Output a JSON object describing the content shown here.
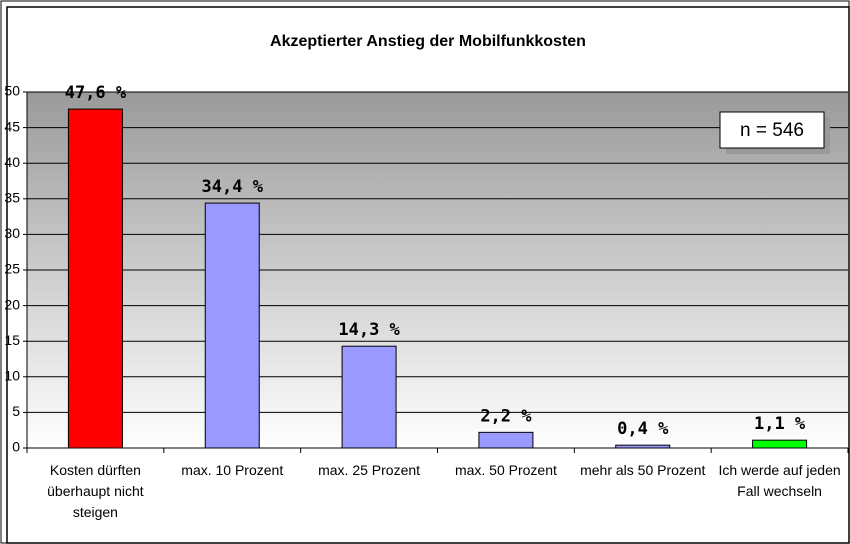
{
  "chart_data": {
    "type": "bar",
    "title": "Akzeptierter Anstieg der Mobilfunkkosten",
    "categories": [
      "Kosten dürften überhaupt nicht steigen",
      "max. 10 Prozent",
      "max. 25 Prozent",
      "max. 50 Prozent",
      "mehr als 50 Prozent",
      "Ich werde auf jeden Fall wechseln"
    ],
    "values": [
      47.6,
      34.4,
      14.3,
      2.2,
      0.4,
      1.1
    ],
    "value_labels": [
      "47,6 %",
      "34,4 %",
      "14,3 %",
      "2,2 %",
      "0,4 %",
      "1,1 %"
    ],
    "colors": [
      "#ff0000",
      "#9999ff",
      "#9999ff",
      "#9999ff",
      "#9999ff",
      "#00ff00"
    ],
    "ylim": [
      0,
      50
    ],
    "yticks": [
      0,
      5,
      10,
      15,
      20,
      25,
      30,
      35,
      40,
      45,
      50
    ],
    "grid": true,
    "annotation": "n = 546"
  }
}
